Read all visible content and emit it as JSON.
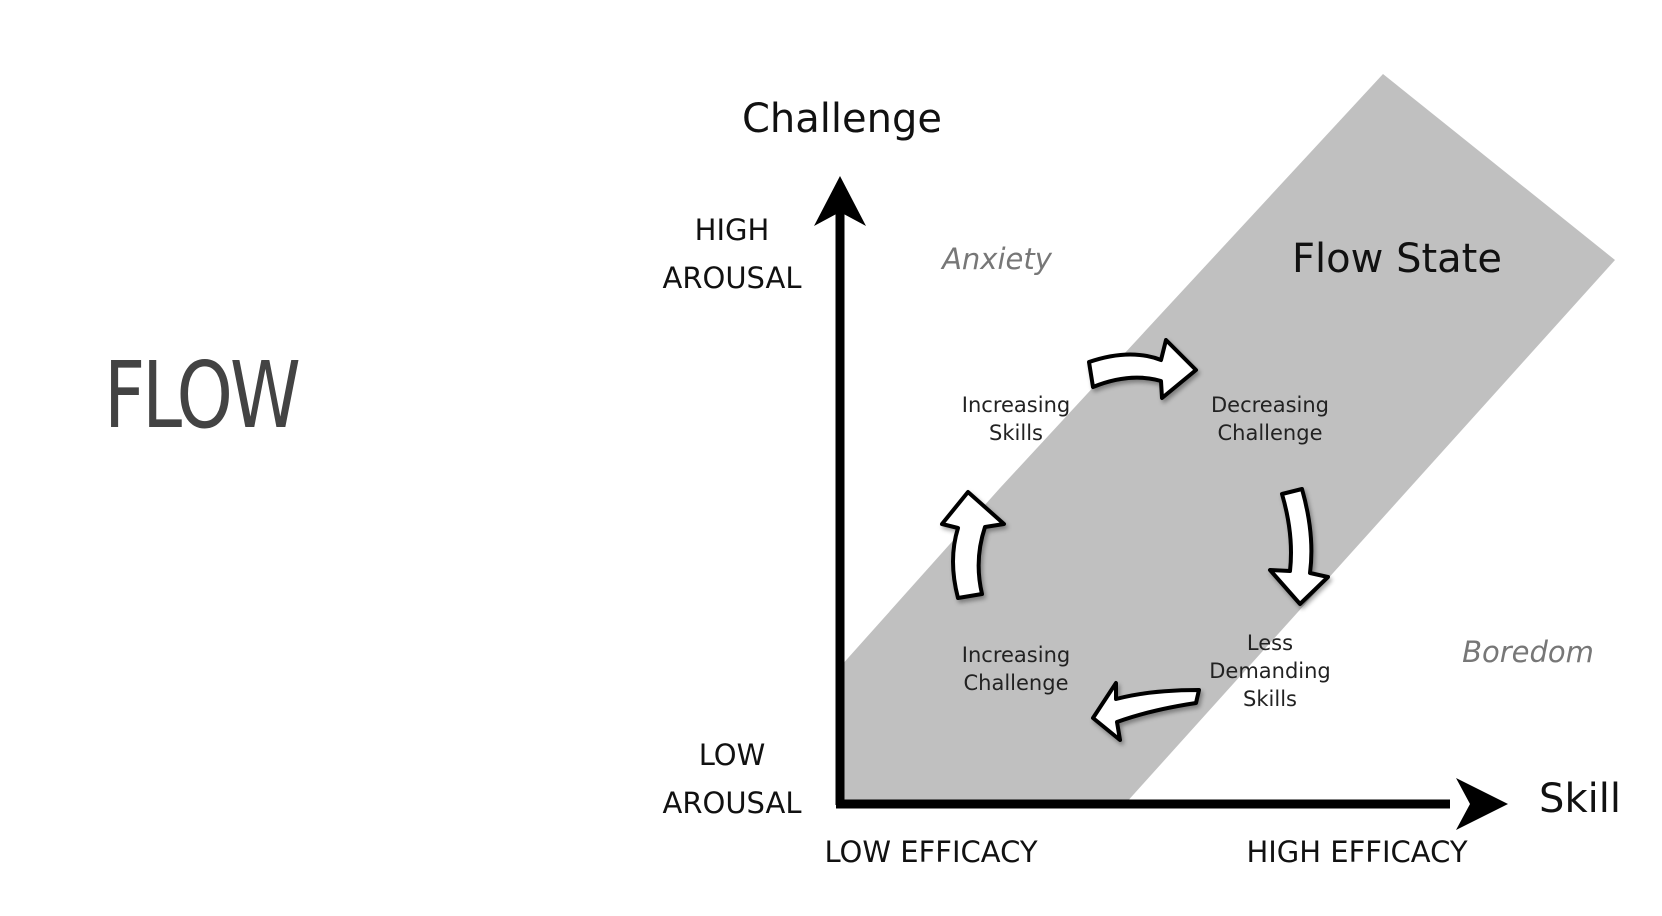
{
  "slide_title": "FLOW",
  "diagram": {
    "y_axis_label": "Challenge",
    "x_axis_label": "Skill",
    "y_high": [
      "HIGH",
      "AROUSAL"
    ],
    "y_low": [
      "LOW",
      "AROUSAL"
    ],
    "x_low": "LOW EFFICACY",
    "x_high": "HIGH EFFICACY",
    "regions": {
      "anxiety": "Anxiety",
      "boredom": "Boredom",
      "flow": "Flow State"
    },
    "cycle_steps": {
      "increasing_skills": [
        "Increasing",
        "Skills"
      ],
      "decreasing_challenge": [
        "Decreasing",
        "Challenge"
      ],
      "less_demanding_skills": [
        "Less",
        "Demanding",
        "Skills"
      ],
      "increasing_challenge": [
        "Increasing",
        "Challenge"
      ]
    },
    "colors": {
      "flow_band": "#c0c0c0",
      "axis": "#000000",
      "region_label": "#777777",
      "title": "#434343"
    }
  }
}
